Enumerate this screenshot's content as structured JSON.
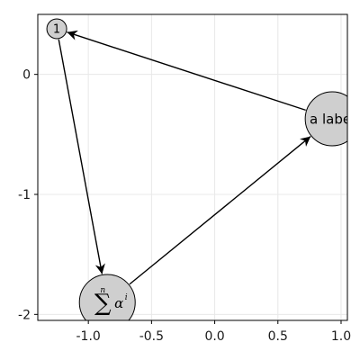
{
  "chart_data": {
    "type": "graph",
    "title": "",
    "xlabel": "",
    "ylabel": "",
    "xlim": [
      -1.4,
      1.05
    ],
    "ylim": [
      -2.05,
      0.5
    ],
    "grid": true,
    "x_ticks": [
      -1.0,
      -0.5,
      0.0,
      0.5,
      1.0
    ],
    "x_tick_labels": [
      "-1.0",
      "-0.5",
      "0.0",
      "0.5",
      "1.0"
    ],
    "y_ticks": [
      0,
      -1,
      -2
    ],
    "y_tick_labels": [
      "0",
      "-1",
      "-2"
    ],
    "nodes": [
      {
        "id": "n1",
        "x": -1.25,
        "y": 0.38,
        "label": "1"
      },
      {
        "id": "n2",
        "x": 0.93,
        "y": -0.37,
        "label": "a label"
      },
      {
        "id": "n3",
        "x": -0.85,
        "y": -1.9,
        "label": "∑",
        "superscript": "n",
        "term": "α",
        "term_superscript": "i"
      }
    ],
    "edges": [
      {
        "from": "n1",
        "to": "n3"
      },
      {
        "from": "n3",
        "to": "n2"
      },
      {
        "from": "n2",
        "to": "n1"
      }
    ]
  },
  "colors": {
    "node_fill": "#cfcfcf",
    "node_stroke": "#000000",
    "edge": "#000000",
    "grid": "#e8e8e8",
    "frame": "#000000"
  }
}
